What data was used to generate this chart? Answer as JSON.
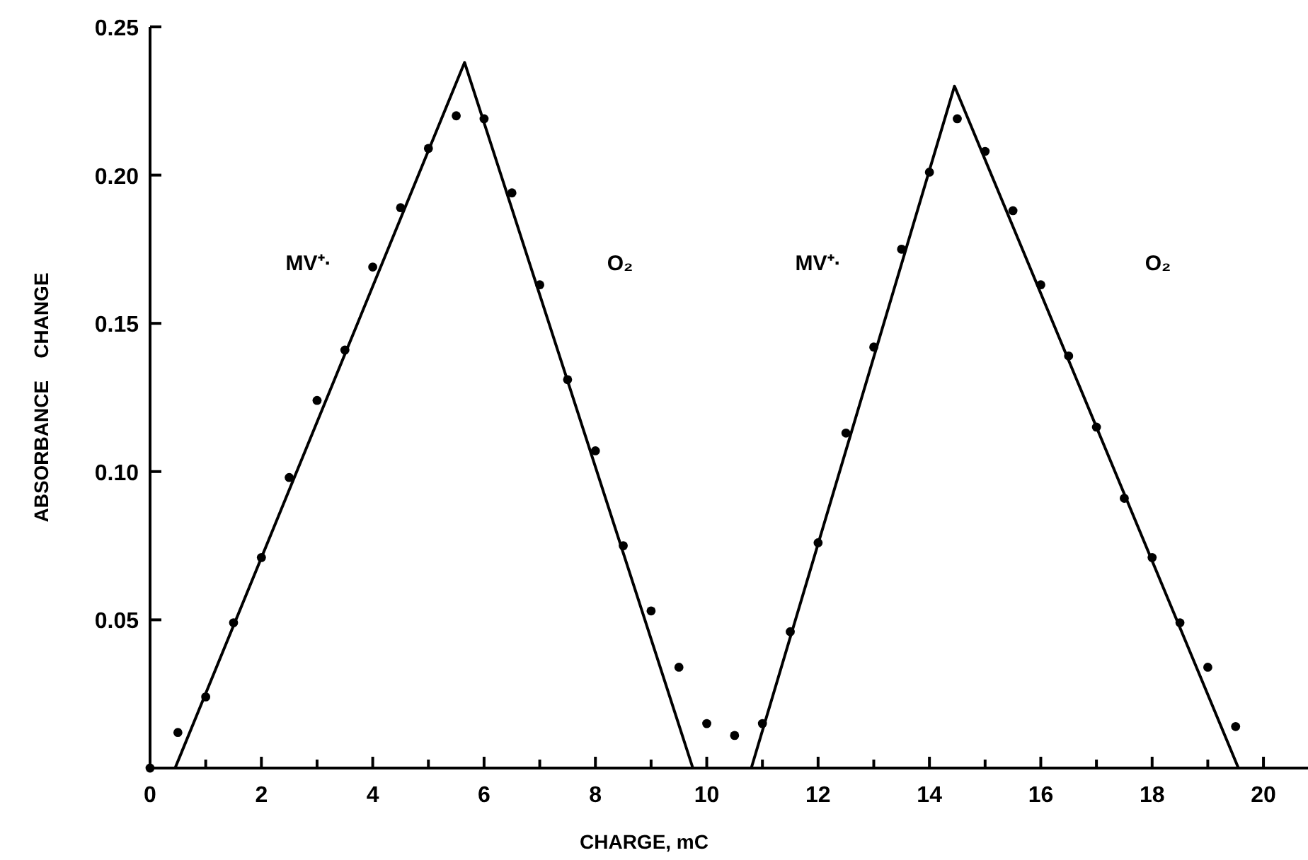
{
  "chart_data": {
    "type": "scatter",
    "xlabel": "CHARGE, mC",
    "ylabel": "ABSORBANCE    CHANGE",
    "xlim": [
      0,
      20.8
    ],
    "ylim": [
      0,
      0.25
    ],
    "xticks": [
      0,
      {
        "value": 1,
        "label": null
      },
      2,
      {
        "value": 3,
        "label": null
      },
      4,
      {
        "value": 5,
        "label": null
      },
      6,
      {
        "value": 7,
        "label": null
      },
      8,
      {
        "value": 9,
        "label": null
      },
      10,
      {
        "value": 11,
        "label": null
      },
      12,
      {
        "value": 13,
        "label": null
      },
      14,
      {
        "value": 15,
        "label": null
      },
      16,
      {
        "value": 17,
        "label": null
      },
      18,
      {
        "value": 19,
        "label": null
      },
      20
    ],
    "yticks": [
      {
        "value": 0.05,
        "label": "0.05"
      },
      {
        "value": 0.1,
        "label": "0.10"
      },
      {
        "value": 0.15,
        "label": "0.15"
      },
      {
        "value": 0.2,
        "label": "0.20"
      },
      {
        "value": 0.25,
        "label": "0.25"
      }
    ],
    "grid": false,
    "series": [
      {
        "marker": "circle",
        "color": "#000000",
        "x": [
          0,
          0.5,
          1,
          1.5,
          2,
          2.5,
          3,
          3.5,
          4,
          4.5,
          5,
          5.5,
          6,
          6.5,
          7,
          7.5,
          8,
          8.5,
          9,
          9.5,
          10,
          10.5,
          11,
          11.5,
          12,
          12.5,
          13,
          13.5,
          14,
          14.5,
          15,
          15.5,
          16,
          16.5,
          17,
          17.5,
          18,
          18.5,
          19,
          19.5
        ],
        "values": [
          0,
          0.012,
          0.024,
          0.049,
          0.071,
          0.098,
          0.124,
          0.141,
          0.169,
          0.189,
          0.209,
          0.22,
          0.219,
          0.194,
          0.163,
          0.131,
          0.107,
          0.075,
          0.053,
          0.034,
          0.015,
          0.011,
          0.015,
          0.046,
          0.076,
          0.113,
          0.142,
          0.175,
          0.201,
          0.219,
          0.208,
          0.188,
          0.163,
          0.139,
          0.115,
          0.091,
          0.071,
          0.049,
          0.034,
          0.014
        ]
      },
      {
        "type": "line",
        "marker": "none",
        "line_style": "solid",
        "color": "#000000",
        "x": [
          0.45,
          5.65,
          9.75
        ],
        "values": [
          0,
          0.238,
          0
        ]
      },
      {
        "type": "line",
        "marker": "none",
        "line_style": "solid",
        "color": "#000000",
        "x": [
          10.8,
          14.45,
          19.55
        ],
        "values": [
          0,
          0.23,
          0
        ]
      }
    ],
    "annotations": [
      "MV⁺·",
      "O₂",
      "MV⁺·",
      "O₂"
    ]
  }
}
